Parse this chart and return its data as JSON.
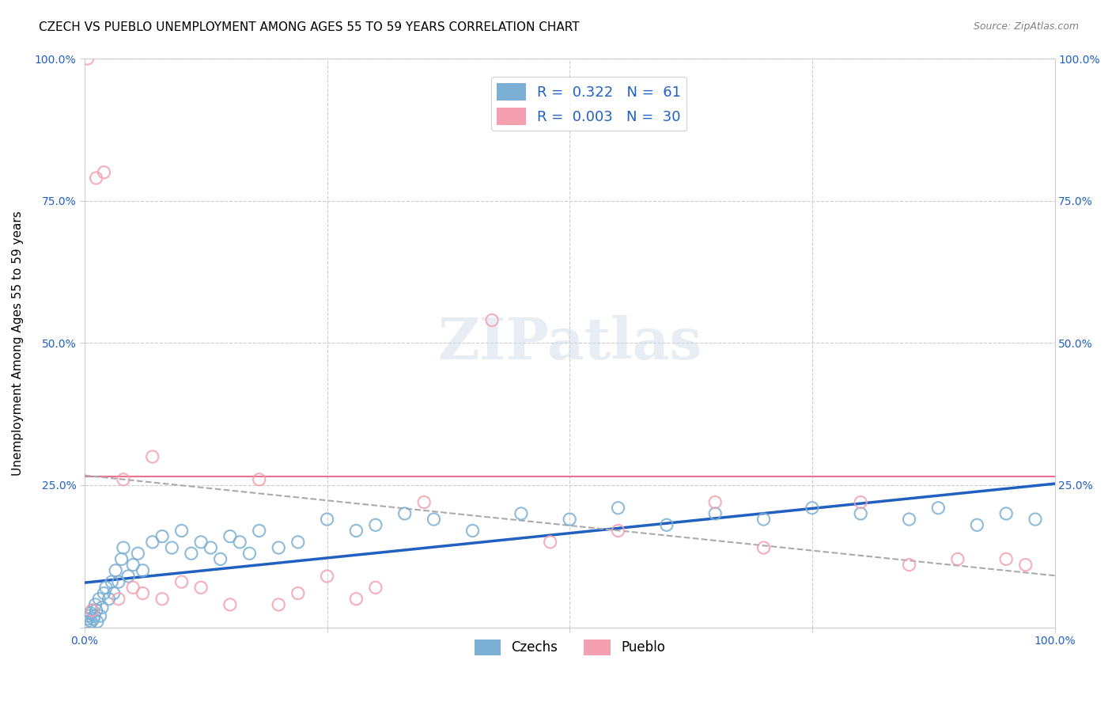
{
  "title": "CZECH VS PUEBLO UNEMPLOYMENT AMONG AGES 55 TO 59 YEARS CORRELATION CHART",
  "source": "Source: ZipAtlas.com",
  "ylabel": "Unemployment Among Ages 55 to 59 years",
  "xlim": [
    0,
    100
  ],
  "ylim": [
    0,
    100
  ],
  "czech_color": "#7BAFD4",
  "pueblo_color": "#F4A0B0",
  "czech_line_color": "#2060c0",
  "pueblo_line_color": "#aaaaaa",
  "horiz_line_color": "#E87090",
  "czech_R": 0.322,
  "czech_N": 61,
  "pueblo_R": 0.003,
  "pueblo_N": 30,
  "pueblo_horizontal_line_y": 26.5,
  "background_color": "#ffffff",
  "grid_color": "#cccccc",
  "title_fontsize": 11,
  "axis_label_fontsize": 11,
  "tick_fontsize": 10,
  "legend_fontsize": 13,
  "watermark_color": "#d0dde8",
  "czech_points_x": [
    0.2,
    0.3,
    0.4,
    0.5,
    0.6,
    0.7,
    0.8,
    0.9,
    1.0,
    1.1,
    1.2,
    1.3,
    1.5,
    1.6,
    1.8,
    2.0,
    2.2,
    2.5,
    2.8,
    3.0,
    3.2,
    3.5,
    3.8,
    4.0,
    4.5,
    5.0,
    5.5,
    6.0,
    7.0,
    8.0,
    9.0,
    10.0,
    11.0,
    12.0,
    13.0,
    14.0,
    15.0,
    16.0,
    17.0,
    18.0,
    20.0,
    22.0,
    25.0,
    28.0,
    30.0,
    33.0,
    36.0,
    40.0,
    45.0,
    50.0,
    55.0,
    60.0,
    65.0,
    70.0,
    75.0,
    80.0,
    85.0,
    88.0,
    92.0,
    95.0,
    98.0
  ],
  "czech_points_y": [
    1.0,
    1.5,
    2.0,
    0.5,
    2.5,
    1.0,
    3.0,
    1.5,
    2.0,
    4.0,
    3.0,
    1.0,
    5.0,
    2.0,
    3.5,
    6.0,
    7.0,
    5.0,
    8.0,
    6.0,
    10.0,
    8.0,
    12.0,
    14.0,
    9.0,
    11.0,
    13.0,
    10.0,
    15.0,
    16.0,
    14.0,
    17.0,
    13.0,
    15.0,
    14.0,
    12.0,
    16.0,
    15.0,
    13.0,
    17.0,
    14.0,
    15.0,
    19.0,
    17.0,
    18.0,
    20.0,
    19.0,
    17.0,
    20.0,
    19.0,
    21.0,
    18.0,
    20.0,
    19.0,
    21.0,
    20.0,
    19.0,
    21.0,
    18.0,
    20.0,
    19.0
  ],
  "pueblo_points_x": [
    0.3,
    0.8,
    1.2,
    2.0,
    3.5,
    4.0,
    5.0,
    6.0,
    7.0,
    8.0,
    10.0,
    12.0,
    15.0,
    18.0,
    20.0,
    22.0,
    25.0,
    28.0,
    30.0,
    35.0,
    42.0,
    48.0,
    55.0,
    65.0,
    70.0,
    80.0,
    85.0,
    90.0,
    95.0,
    97.0
  ],
  "pueblo_points_y": [
    100.0,
    3.0,
    79.0,
    80.0,
    5.0,
    26.0,
    7.0,
    6.0,
    30.0,
    5.0,
    8.0,
    7.0,
    4.0,
    26.0,
    4.0,
    6.0,
    9.0,
    5.0,
    7.0,
    22.0,
    54.0,
    15.0,
    17.0,
    22.0,
    14.0,
    22.0,
    11.0,
    12.0,
    12.0,
    11.0
  ]
}
